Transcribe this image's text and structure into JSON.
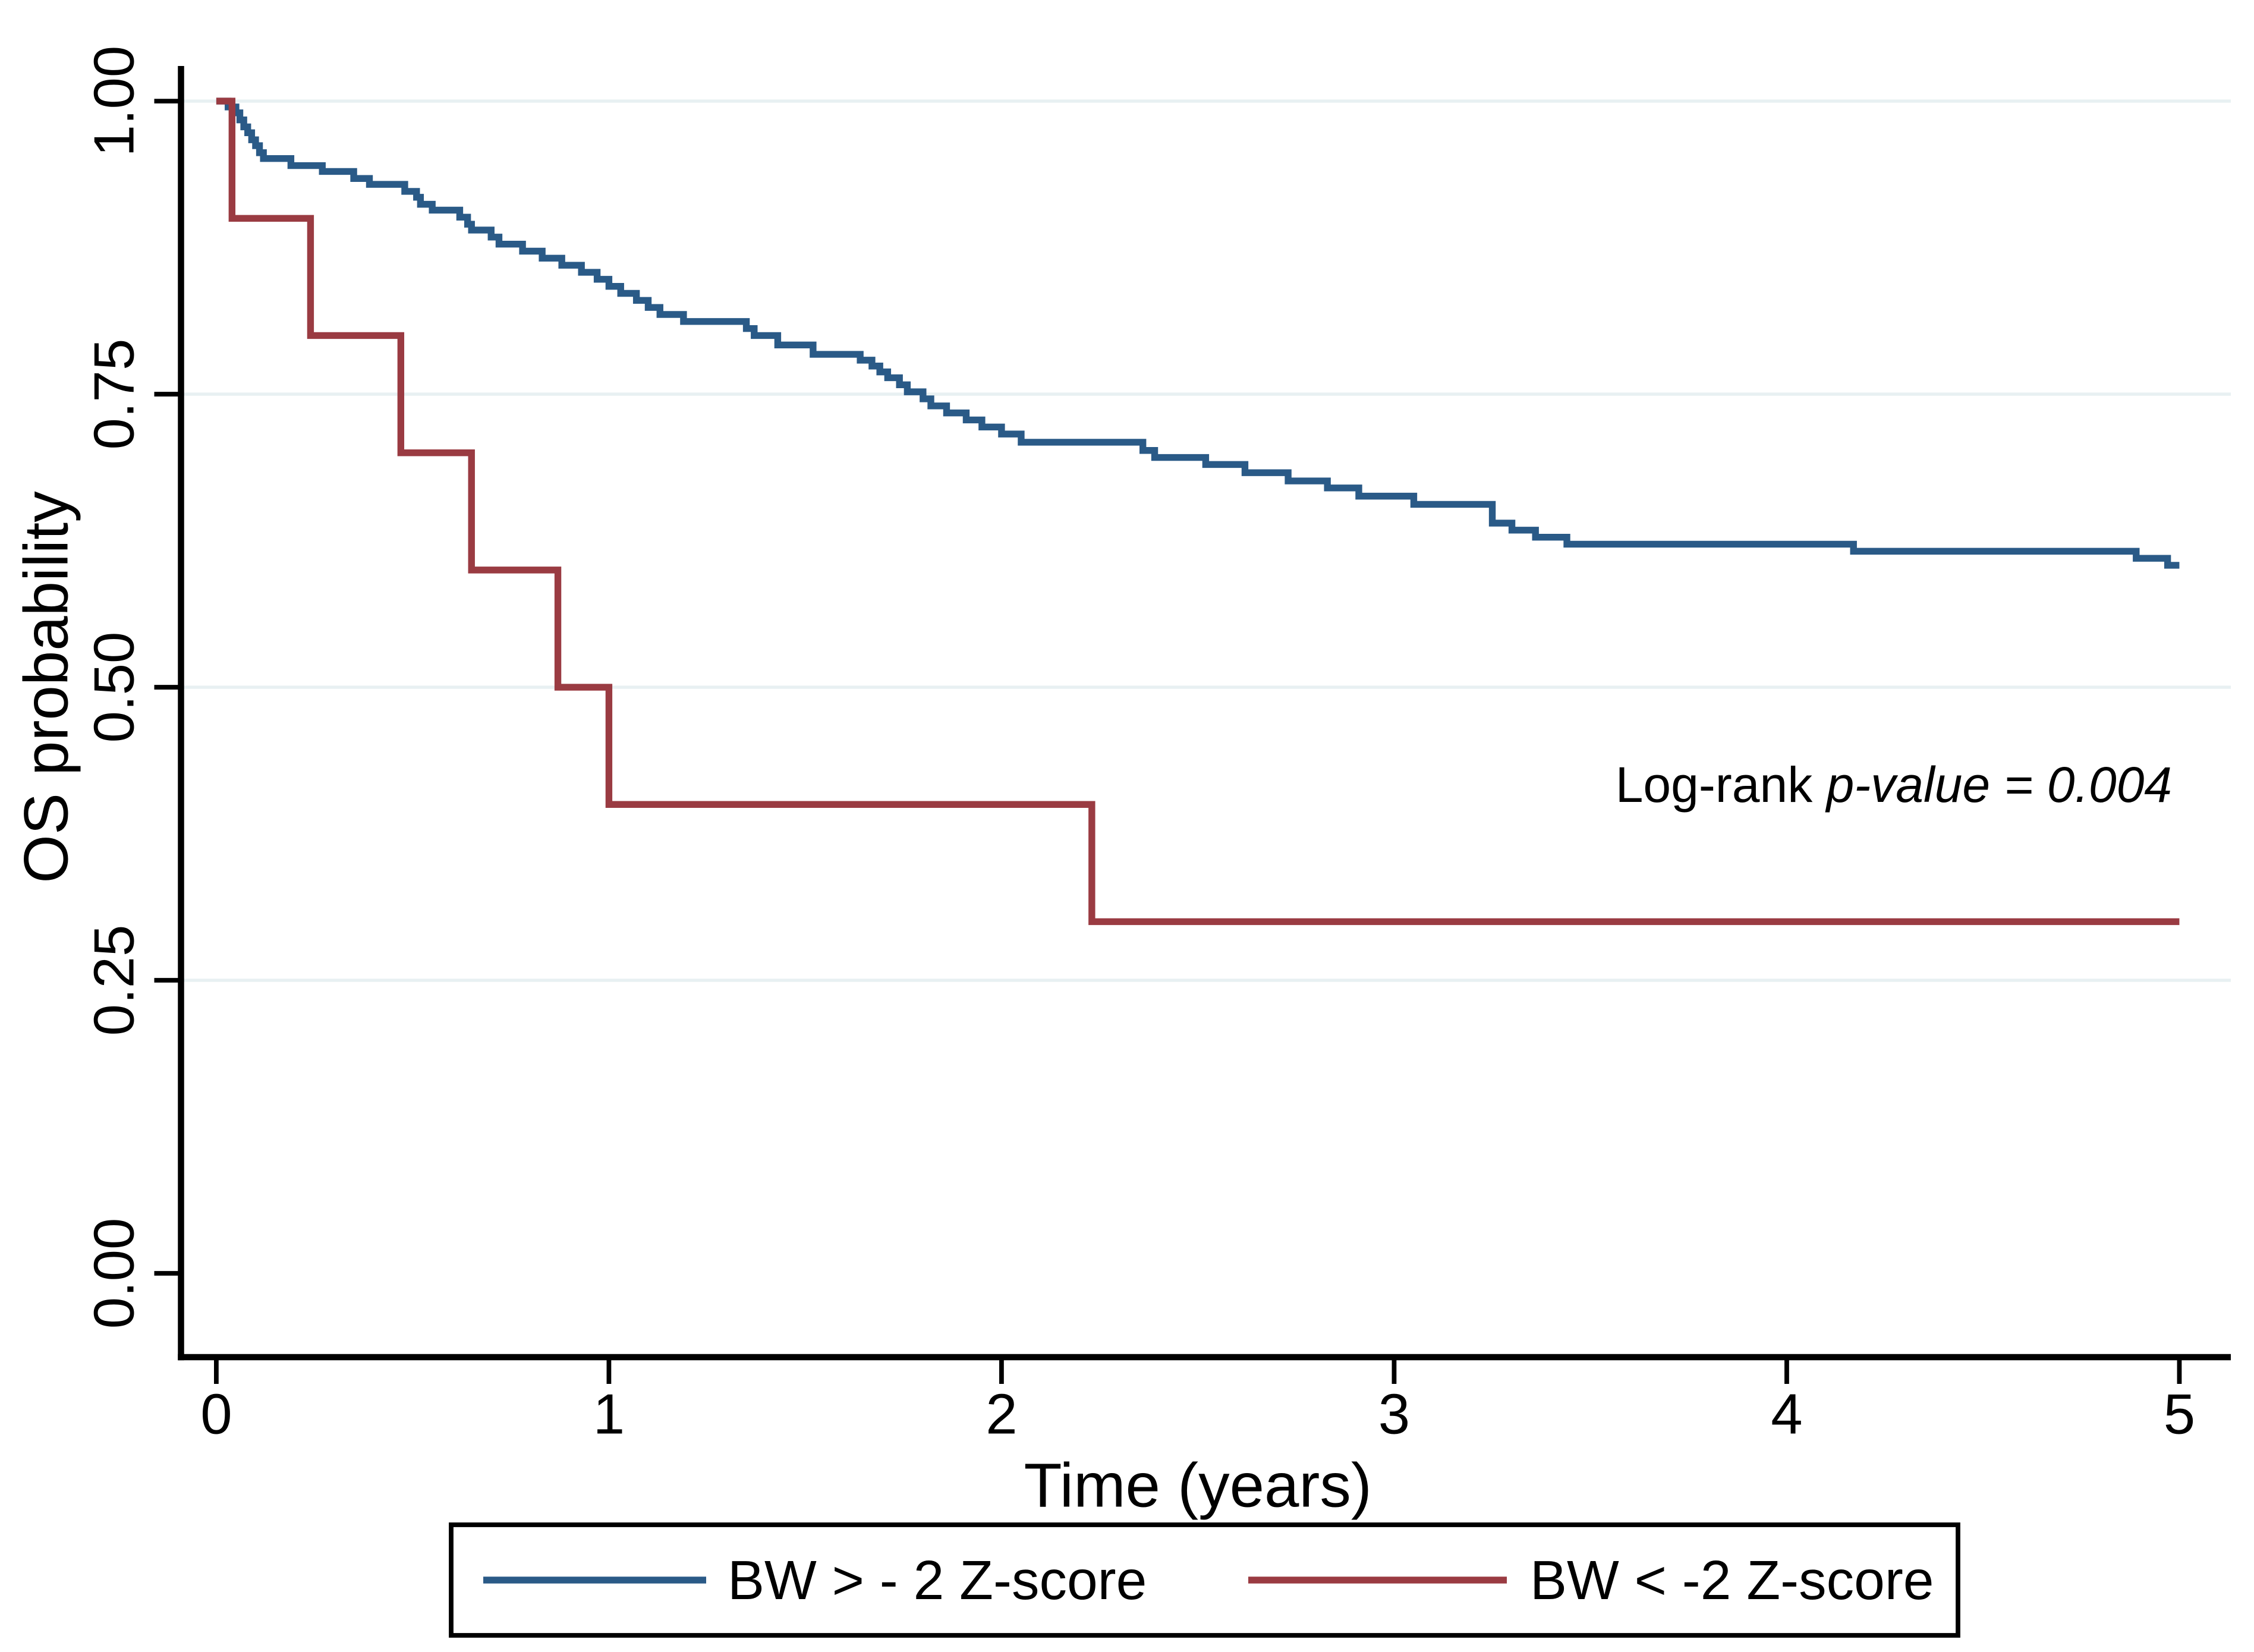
{
  "figure": {
    "background_color": "#ffffff",
    "description": "Kaplan-Meier overall survival curves by birth weight Z-score group"
  },
  "chart_data": {
    "type": "line",
    "subtype": "kaplan-meier-step",
    "title": "",
    "xlabel": "Time (years)",
    "ylabel": "OS probability",
    "xlim": [
      0,
      5
    ],
    "ylim": [
      0,
      1
    ],
    "x_ticks": [
      0,
      1,
      2,
      3,
      4,
      5
    ],
    "x_tick_labels": [
      "0",
      "1",
      "2",
      "3",
      "4",
      "5"
    ],
    "y_ticks": [
      0,
      0.25,
      0.5,
      0.75,
      1
    ],
    "y_tick_labels": [
      "0.00",
      "0.25",
      "0.50",
      "0.75",
      "1.00"
    ],
    "grid_on": true,
    "gridlines_at": [
      0.25,
      0.5,
      0.75,
      1.0
    ],
    "grid_color": "#e8f0f2",
    "axis_color": "#000000",
    "annotation": {
      "text": "Log-rank p-value = 0.004",
      "normal_text": "Log-rank",
      "italic_text": "p-value = 0.004",
      "position": {
        "t": 4.1,
        "p": 0.41
      }
    },
    "legend": {
      "position": "bottom-center",
      "border_color": "#000000",
      "entries": [
        {
          "label": "BW > - 2 Z-score",
          "color": "#2a5a87"
        },
        {
          "label": "BW < -2 Z-score",
          "color": "#9a3b42"
        }
      ]
    },
    "series": [
      {
        "name": "BW > - 2 Z-score",
        "color": "#2a5a87",
        "start": [
          0,
          1.0
        ],
        "end_time": 5.0,
        "drops": [
          [
            0.03,
            0.995
          ],
          [
            0.05,
            0.99
          ],
          [
            0.06,
            0.984
          ],
          [
            0.07,
            0.978
          ],
          [
            0.08,
            0.973
          ],
          [
            0.09,
            0.967
          ],
          [
            0.1,
            0.962
          ],
          [
            0.11,
            0.956
          ],
          [
            0.12,
            0.951
          ],
          [
            0.19,
            0.945
          ],
          [
            0.27,
            0.94
          ],
          [
            0.35,
            0.934
          ],
          [
            0.39,
            0.929
          ],
          [
            0.48,
            0.923
          ],
          [
            0.51,
            0.918
          ],
          [
            0.52,
            0.912
          ],
          [
            0.55,
            0.907
          ],
          [
            0.62,
            0.901
          ],
          [
            0.64,
            0.895
          ],
          [
            0.65,
            0.89
          ],
          [
            0.7,
            0.884
          ],
          [
            0.72,
            0.878
          ],
          [
            0.78,
            0.872
          ],
          [
            0.83,
            0.866
          ],
          [
            0.88,
            0.86
          ],
          [
            0.93,
            0.854
          ],
          [
            0.97,
            0.848
          ],
          [
            1.0,
            0.842
          ],
          [
            1.03,
            0.836
          ],
          [
            1.07,
            0.83
          ],
          [
            1.1,
            0.824
          ],
          [
            1.13,
            0.818
          ],
          [
            1.19,
            0.812
          ],
          [
            1.35,
            0.806
          ],
          [
            1.37,
            0.8
          ],
          [
            1.43,
            0.792
          ],
          [
            1.52,
            0.784
          ],
          [
            1.64,
            0.779
          ],
          [
            1.67,
            0.774
          ],
          [
            1.69,
            0.769
          ],
          [
            1.71,
            0.764
          ],
          [
            1.74,
            0.758
          ],
          [
            1.76,
            0.752
          ],
          [
            1.8,
            0.746
          ],
          [
            1.82,
            0.74
          ],
          [
            1.86,
            0.734
          ],
          [
            1.91,
            0.728
          ],
          [
            1.95,
            0.722
          ],
          [
            2.0,
            0.716
          ],
          [
            2.05,
            0.709
          ],
          [
            2.36,
            0.702
          ],
          [
            2.39,
            0.696
          ],
          [
            2.52,
            0.69
          ],
          [
            2.62,
            0.683
          ],
          [
            2.73,
            0.676
          ],
          [
            2.83,
            0.67
          ],
          [
            2.91,
            0.663
          ],
          [
            3.05,
            0.656
          ],
          [
            3.25,
            0.64
          ],
          [
            3.3,
            0.634
          ],
          [
            3.36,
            0.628
          ],
          [
            3.44,
            0.622
          ],
          [
            4.17,
            0.616
          ],
          [
            4.89,
            0.61
          ],
          [
            4.97,
            0.604
          ]
        ]
      },
      {
        "name": "BW < -2 Z-score",
        "color": "#9a3b42",
        "start": [
          0,
          1.0
        ],
        "end_time": 5.0,
        "drops": [
          [
            0.04,
            0.9
          ],
          [
            0.24,
            0.8
          ],
          [
            0.47,
            0.7
          ],
          [
            0.65,
            0.6
          ],
          [
            0.87,
            0.5
          ],
          [
            1.0,
            0.4
          ],
          [
            2.23,
            0.3
          ]
        ]
      }
    ]
  }
}
